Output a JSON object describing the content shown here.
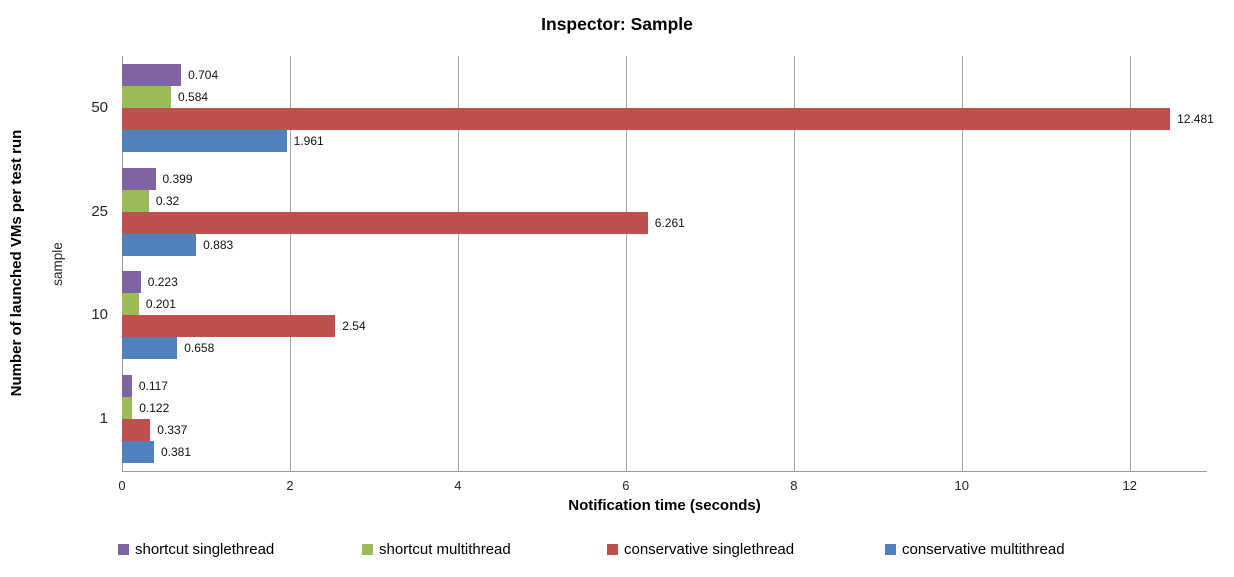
{
  "title": "Inspector: Sample",
  "chart_data": {
    "type": "bar",
    "orientation": "horizontal",
    "title": "Inspector: Sample",
    "xlabel": "Notification time (seconds)",
    "ylabel_outer": "Number of launched VMs per test run",
    "ylabel_inner": "sample",
    "categories": [
      "50",
      "25",
      "10",
      "1"
    ],
    "xticks": [
      0,
      2,
      4,
      6,
      8,
      10,
      12
    ],
    "xlim": [
      0,
      12.92
    ],
    "grid": "vertical-gridlines-on",
    "legend_position": "bottom",
    "series": [
      {
        "name": "shortcut singlethread",
        "color": "#8064A2",
        "values": [
          0.704,
          0.399,
          0.223,
          0.117
        ],
        "labels": [
          "0.704",
          "0.399",
          "0.223",
          "0.117"
        ]
      },
      {
        "name": "shortcut multithread",
        "color": "#9BBB59",
        "values": [
          0.584,
          0.32,
          0.201,
          0.122
        ],
        "labels": [
          "0.584",
          "0.32",
          "0.201",
          "0.122"
        ]
      },
      {
        "name": "conservative singlethread",
        "color": "#C0504D",
        "values": [
          12.481,
          6.261,
          2.54,
          0.337
        ],
        "labels": [
          "12.481",
          "6.261",
          "2.54",
          "0.337"
        ]
      },
      {
        "name": "conservative multithread",
        "color": "#4F81BD",
        "values": [
          1.961,
          0.883,
          0.658,
          0.381
        ],
        "labels": [
          "1.961",
          "0.883",
          "0.658",
          "0.381"
        ]
      }
    ],
    "colors": {
      "gridline": "#a6a6a6",
      "axis": "#9a9a9a",
      "text": "#000000"
    }
  }
}
